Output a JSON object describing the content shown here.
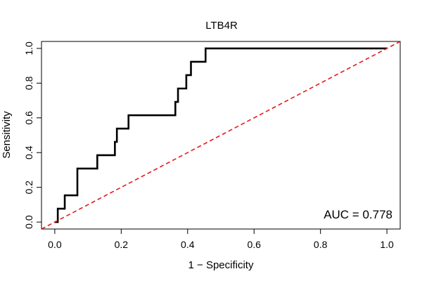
{
  "chart_data": {
    "type": "line",
    "title": "LTB4R",
    "xlabel": "1 − Specificity",
    "ylabel": "Sensitivity",
    "xlim": [
      -0.04,
      1.04
    ],
    "ylim": [
      -0.04,
      1.04
    ],
    "x_ticks": [
      0.0,
      0.2,
      0.4,
      0.6,
      0.8,
      1.0
    ],
    "x_tick_labels": [
      "0.0",
      "0.2",
      "0.4",
      "0.6",
      "0.8",
      "1.0"
    ],
    "y_ticks": [
      0.0,
      0.2,
      0.4,
      0.6,
      0.8,
      1.0
    ],
    "y_tick_labels": [
      "0.0",
      "0.2",
      "0.4",
      "0.6",
      "0.8",
      "1.0"
    ],
    "grid": false,
    "annotation": "AUC = 0.778",
    "colors": {
      "roc": "#000000",
      "reference": "#e41a1c"
    },
    "series": [
      {
        "style": "solid",
        "x": [
          0.0,
          0.009,
          0.009,
          0.03,
          0.03,
          0.068,
          0.068,
          0.128,
          0.128,
          0.181,
          0.181,
          0.187,
          0.187,
          0.222,
          0.222,
          0.363,
          0.363,
          0.371,
          0.371,
          0.396,
          0.396,
          0.41,
          0.41,
          0.454,
          0.454,
          1.0
        ],
        "y": [
          0.0,
          0.0,
          0.077,
          0.077,
          0.154,
          0.154,
          0.308,
          0.308,
          0.385,
          0.385,
          0.462,
          0.462,
          0.538,
          0.538,
          0.615,
          0.615,
          0.692,
          0.692,
          0.769,
          0.769,
          0.846,
          0.846,
          0.923,
          0.923,
          1.0,
          1.0
        ]
      },
      {
        "style": "dashed",
        "x": [
          -0.04,
          1.04
        ],
        "y": [
          -0.04,
          1.04
        ]
      }
    ]
  }
}
